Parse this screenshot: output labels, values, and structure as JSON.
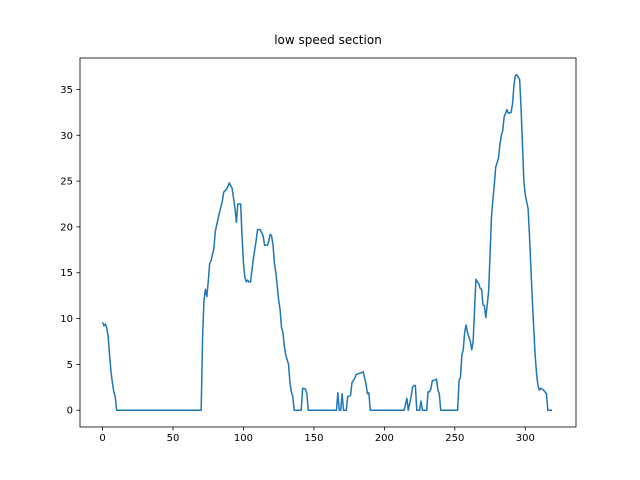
{
  "chart_data": {
    "type": "line",
    "title": "low speed section",
    "x": [
      0,
      1,
      2,
      3,
      4,
      5,
      6,
      7,
      8,
      9,
      10,
      70,
      71,
      72,
      73,
      74,
      75,
      76,
      77,
      78,
      79,
      80,
      81,
      83,
      85,
      86,
      88,
      90,
      92,
      94,
      95,
      96,
      98,
      99,
      100,
      101,
      102,
      103,
      104,
      105,
      107,
      109,
      110,
      112,
      114,
      115,
      117,
      118,
      119,
      120,
      121,
      122,
      123,
      125,
      126,
      127,
      128,
      129,
      130,
      132,
      133,
      134,
      135,
      136,
      141,
      142,
      144,
      145,
      146,
      166,
      167,
      168,
      169,
      170,
      171,
      173,
      174,
      176,
      177,
      179,
      180,
      182,
      184,
      185,
      186,
      187,
      188,
      189,
      190,
      214,
      216,
      217,
      219,
      220,
      221,
      222,
      223,
      225,
      226,
      227,
      230,
      231,
      232,
      233,
      234,
      236,
      237,
      238,
      239,
      240,
      252,
      253,
      254,
      255,
      256,
      257,
      258,
      259,
      260,
      261,
      262,
      263,
      264,
      265,
      266,
      267,
      268,
      269,
      270,
      271,
      272,
      273,
      274,
      275,
      276,
      277,
      278,
      279,
      280,
      281,
      282,
      283,
      284,
      285,
      287,
      288,
      290,
      291,
      292,
      293,
      294,
      296,
      297,
      298,
      299,
      300,
      302,
      303,
      304,
      305,
      306,
      307,
      308,
      309,
      310,
      311,
      312,
      313,
      314,
      315,
      316,
      319
    ],
    "series": [
      {
        "color": "#1f77b4",
        "values": [
          9.6,
          9.2,
          9.4,
          9.0,
          8.0,
          6.0,
          4.2,
          3.0,
          2.0,
          1.5,
          0,
          0,
          8,
          12,
          13.2,
          12.4,
          14,
          16,
          16.3,
          17,
          17.6,
          19.5,
          20.2,
          21.6,
          22.8,
          23.8,
          24.1,
          24.8,
          24.2,
          22,
          20.5,
          22.5,
          22.5,
          19,
          16,
          14.5,
          14,
          14.2,
          14,
          14,
          16.5,
          18.5,
          19.7,
          19.7,
          19,
          18,
          18,
          18.5,
          19.2,
          19,
          18,
          16,
          15,
          12,
          11,
          9,
          8.5,
          7,
          6,
          5,
          3,
          2,
          1.5,
          0,
          0,
          2.4,
          2.3,
          1.8,
          0,
          0,
          1.9,
          0,
          0,
          1.8,
          0,
          0,
          1.5,
          1.6,
          3,
          3.5,
          3.9,
          4,
          4.1,
          4.2,
          3.5,
          2.8,
          1.8,
          1.9,
          0,
          0,
          1.3,
          0,
          1.5,
          2.5,
          2.7,
          2.7,
          0,
          0,
          1,
          0,
          0,
          2,
          2,
          2.3,
          3.2,
          3.3,
          3.4,
          2.2,
          1.8,
          0,
          0,
          3.2,
          3.6,
          6,
          6.6,
          8.5,
          9.3,
          8.5,
          8,
          7.5,
          6.6,
          7.5,
          11,
          14.3,
          14,
          13.8,
          13.3,
          13.2,
          11.5,
          11.4,
          10.1,
          11.5,
          13,
          17,
          21,
          23,
          24.5,
          26.5,
          27,
          27.5,
          29,
          30,
          30.5,
          32,
          32.8,
          32.4,
          32.5,
          33.5,
          35.5,
          36.5,
          36.6,
          36.1,
          33,
          29,
          25,
          23.5,
          22,
          19,
          15.5,
          12,
          9,
          6,
          4,
          2.7,
          2.2,
          2.4,
          2.3,
          2.2,
          2,
          1.8,
          0,
          0
        ]
      }
    ],
    "xlim": [
      -16,
      336
    ],
    "ylim": [
      -1.83,
      38.43
    ],
    "xticks": [
      0,
      50,
      100,
      150,
      200,
      250,
      300
    ],
    "yticks": [
      0,
      5,
      10,
      15,
      20,
      25,
      30,
      35
    ]
  }
}
